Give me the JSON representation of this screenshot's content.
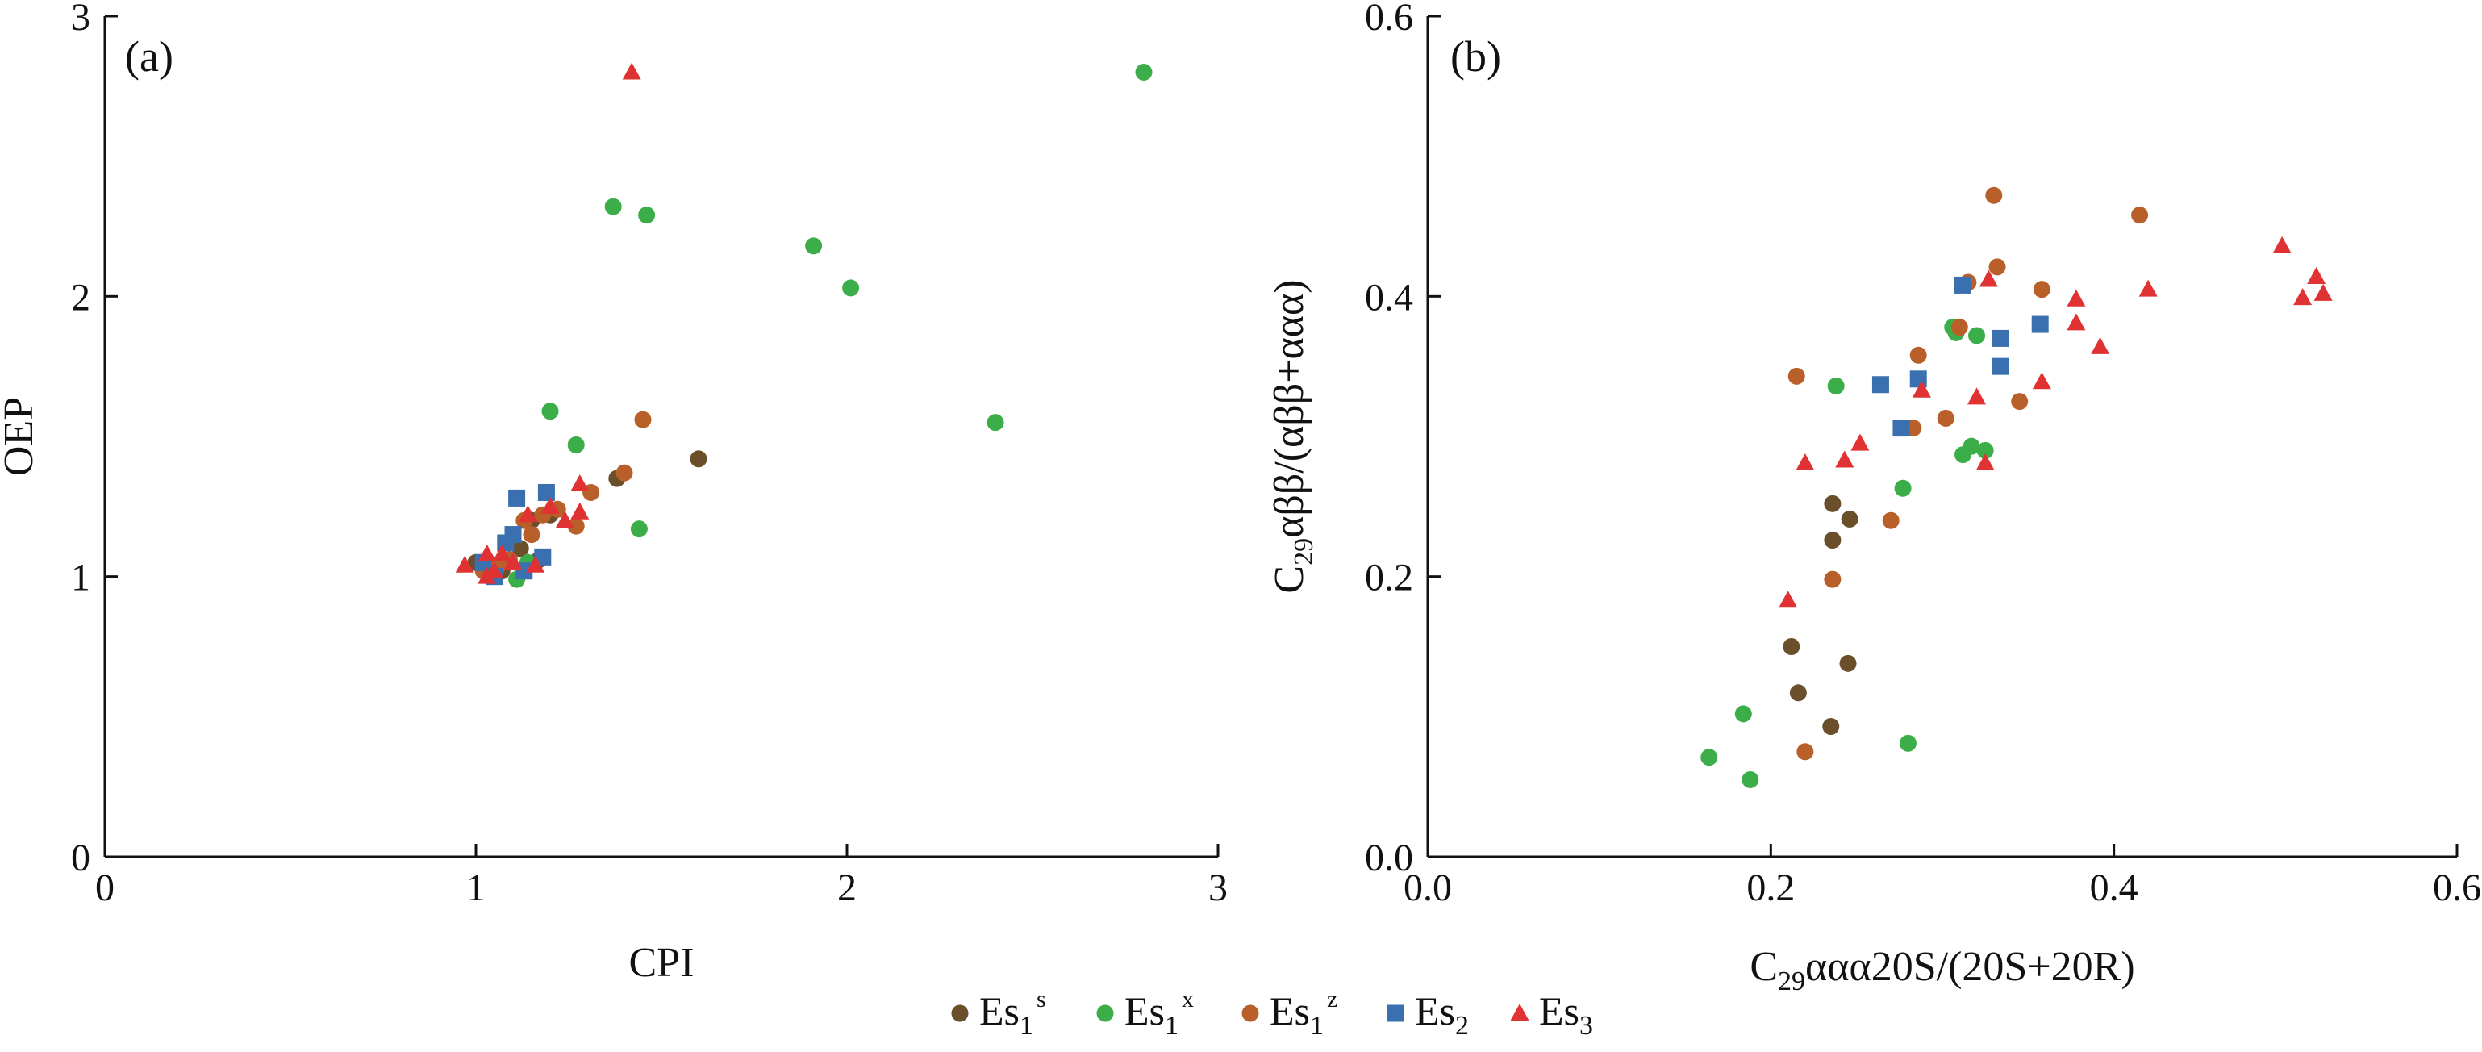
{
  "chart_data": [
    {
      "type": "scatter",
      "panel_label": "(a)",
      "xlabel": "CPI",
      "ylabel": "OEP",
      "xlim": [
        0,
        3
      ],
      "ylim": [
        0,
        3
      ],
      "xticks": [
        "0",
        "1",
        "2",
        "3"
      ],
      "yticks": [
        "0",
        "1",
        "2",
        "3"
      ],
      "series": [
        {
          "key": "es1s",
          "name": "Es1s",
          "marker": "circle",
          "color": "#6b4f2a",
          "points": [
            [
              1.0,
              1.05
            ],
            [
              1.04,
              1.0
            ],
            [
              1.12,
              1.1
            ],
            [
              1.15,
              1.2
            ],
            [
              1.2,
              1.22
            ],
            [
              1.38,
              1.35
            ],
            [
              1.6,
              1.42
            ],
            [
              1.07,
              1.02
            ],
            [
              1.17,
              1.06
            ]
          ]
        },
        {
          "key": "es1x",
          "name": "Es1x",
          "marker": "circle",
          "color": "#3cae49",
          "points": [
            [
              1.37,
              2.32
            ],
            [
              1.46,
              2.29
            ],
            [
              1.91,
              2.18
            ],
            [
              2.01,
              2.03
            ],
            [
              2.8,
              2.8
            ],
            [
              2.4,
              1.55
            ],
            [
              1.2,
              1.59
            ],
            [
              1.27,
              1.47
            ],
            [
              1.44,
              1.17
            ],
            [
              1.11,
              0.99
            ],
            [
              1.14,
              1.05
            ]
          ]
        },
        {
          "key": "es1z",
          "name": "Es1z",
          "marker": "circle",
          "color": "#b85f2a",
          "points": [
            [
              1.45,
              1.56
            ],
            [
              1.4,
              1.37
            ],
            [
              1.31,
              1.3
            ],
            [
              1.27,
              1.18
            ],
            [
              1.22,
              1.24
            ],
            [
              1.18,
              1.22
            ],
            [
              1.15,
              1.15
            ],
            [
              1.13,
              1.2
            ],
            [
              1.09,
              1.06
            ],
            [
              1.06,
              1.04
            ],
            [
              1.02,
              1.02
            ]
          ]
        },
        {
          "key": "es2",
          "name": "Es2",
          "marker": "square",
          "color": "#3a6fb0",
          "points": [
            [
              1.11,
              1.28
            ],
            [
              1.19,
              1.3
            ],
            [
              1.08,
              1.12
            ],
            [
              1.18,
              1.07
            ],
            [
              1.13,
              1.02
            ],
            [
              1.05,
              1.0
            ],
            [
              1.02,
              1.05
            ],
            [
              1.1,
              1.15
            ]
          ]
        },
        {
          "key": "es3",
          "name": "Es3",
          "marker": "triangle",
          "color": "#e03232",
          "points": [
            [
              1.42,
              2.8
            ],
            [
              1.28,
              1.33
            ],
            [
              1.28,
              1.23
            ],
            [
              1.24,
              1.2
            ],
            [
              1.2,
              1.25
            ],
            [
              1.14,
              1.22
            ],
            [
              0.97,
              1.04
            ],
            [
              1.03,
              1.0
            ],
            [
              1.05,
              1.02
            ],
            [
              1.07,
              1.08
            ],
            [
              1.1,
              1.05
            ],
            [
              1.03,
              1.08
            ],
            [
              1.16,
              1.04
            ]
          ]
        }
      ]
    },
    {
      "type": "scatter",
      "panel_label": "(b)",
      "xlabel": "C29ααα20S/(20S+20R)",
      "ylabel": "C29αββ/(αββ+ααα)",
      "xlim": [
        0.0,
        0.6
      ],
      "ylim": [
        0.0,
        0.6
      ],
      "xticks": [
        "0.0",
        "0.2",
        "0.4",
        "0.6"
      ],
      "yticks": [
        "0.0",
        "0.2",
        "0.4",
        "0.6"
      ],
      "series": [
        {
          "key": "es1s",
          "name": "Es1s",
          "marker": "circle",
          "color": "#6b4f2a",
          "points": [
            [
              0.236,
              0.252
            ],
            [
              0.236,
              0.226
            ],
            [
              0.246,
              0.241
            ],
            [
              0.212,
              0.15
            ],
            [
              0.216,
              0.117
            ],
            [
              0.245,
              0.138
            ],
            [
              0.235,
              0.093
            ]
          ]
        },
        {
          "key": "es1x",
          "name": "Es1x",
          "marker": "circle",
          "color": "#3cae49",
          "points": [
            [
              0.164,
              0.071
            ],
            [
              0.184,
              0.102
            ],
            [
              0.188,
              0.055
            ],
            [
              0.238,
              0.336
            ],
            [
              0.277,
              0.263
            ],
            [
              0.28,
              0.081
            ],
            [
              0.306,
              0.378
            ],
            [
              0.308,
              0.374
            ],
            [
              0.32,
              0.372
            ],
            [
              0.312,
              0.287
            ],
            [
              0.317,
              0.293
            ],
            [
              0.325,
              0.29
            ]
          ]
        },
        {
          "key": "es1z",
          "name": "Es1z",
          "marker": "circle",
          "color": "#b85f2a",
          "points": [
            [
              0.215,
              0.343
            ],
            [
              0.22,
              0.075
            ],
            [
              0.236,
              0.198
            ],
            [
              0.27,
              0.24
            ],
            [
              0.283,
              0.306
            ],
            [
              0.286,
              0.358
            ],
            [
              0.302,
              0.313
            ],
            [
              0.31,
              0.378
            ],
            [
              0.315,
              0.41
            ],
            [
              0.33,
              0.472
            ],
            [
              0.332,
              0.421
            ],
            [
              0.358,
              0.405
            ],
            [
              0.345,
              0.325
            ],
            [
              0.415,
              0.458
            ]
          ]
        },
        {
          "key": "es2",
          "name": "Es2",
          "marker": "square",
          "color": "#3a6fb0",
          "points": [
            [
              0.264,
              0.337
            ],
            [
              0.276,
              0.306
            ],
            [
              0.286,
              0.341
            ],
            [
              0.312,
              0.408
            ],
            [
              0.334,
              0.37
            ],
            [
              0.334,
              0.35
            ],
            [
              0.357,
              0.38
            ]
          ]
        },
        {
          "key": "es3",
          "name": "Es3",
          "marker": "triangle",
          "color": "#e03232",
          "points": [
            [
              0.21,
              0.183
            ],
            [
              0.22,
              0.281
            ],
            [
              0.243,
              0.283
            ],
            [
              0.252,
              0.295
            ],
            [
              0.288,
              0.333
            ],
            [
              0.32,
              0.328
            ],
            [
              0.325,
              0.281
            ],
            [
              0.327,
              0.412
            ],
            [
              0.358,
              0.339
            ],
            [
              0.378,
              0.398
            ],
            [
              0.378,
              0.381
            ],
            [
              0.392,
              0.364
            ],
            [
              0.42,
              0.405
            ],
            [
              0.498,
              0.436
            ],
            [
              0.51,
              0.399
            ],
            [
              0.518,
              0.414
            ],
            [
              0.522,
              0.402
            ]
          ]
        }
      ]
    }
  ],
  "legend": {
    "placement": "bottom-center",
    "items": [
      {
        "key": "es1s",
        "base": "Es",
        "sub": "1",
        "sup": "s"
      },
      {
        "key": "es1x",
        "base": "Es",
        "sub": "1",
        "sup": "x"
      },
      {
        "key": "es1z",
        "base": "Es",
        "sub": "1",
        "sup": "z"
      },
      {
        "key": "es2",
        "base": "Es",
        "sub": "2",
        "sup": ""
      },
      {
        "key": "es3",
        "base": "Es",
        "sub": "3",
        "sup": ""
      }
    ]
  }
}
